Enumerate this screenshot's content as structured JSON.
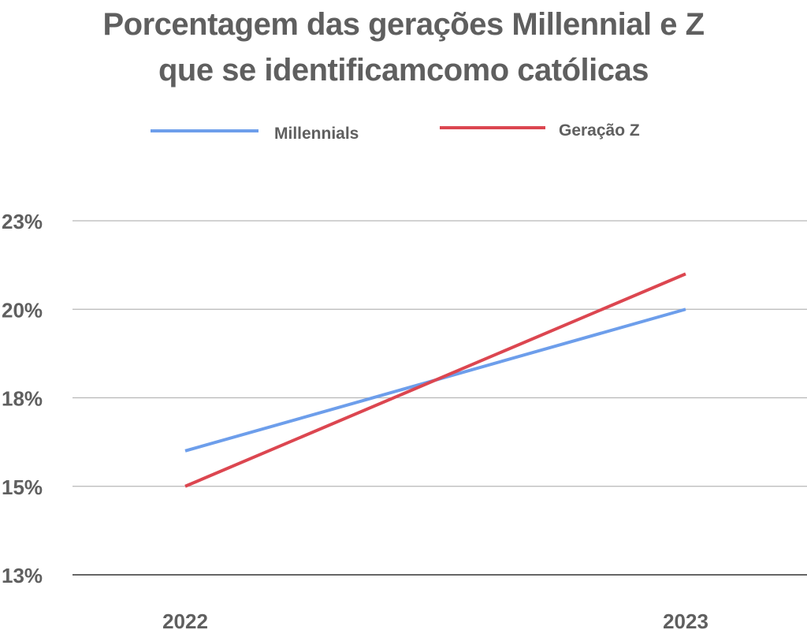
{
  "chart_data": {
    "type": "line",
    "title_lines": [
      "Porcentagem das gerações Millennial e Z",
      "que se identificamcomo católicas"
    ],
    "categories": [
      "2022",
      "2023"
    ],
    "y_tick_labels": [
      "13%",
      "15%",
      "18%",
      "20%",
      "23%"
    ],
    "ylim": [
      12.5,
      22.5
    ],
    "y_ticks": [
      12.5,
      15,
      17.5,
      20,
      22.5
    ],
    "series": [
      {
        "name": "Millennials",
        "values": [
          16.0,
          20.0
        ],
        "color": "#6d9eeb"
      },
      {
        "name": "Geração Z",
        "values": [
          15.0,
          21.0
        ],
        "color": "#dc4650"
      }
    ],
    "legend_position": "top",
    "grid": true,
    "xlabel": "",
    "ylabel": ""
  },
  "colors": {
    "text": "#5f5f5f",
    "grid": "#b7b7b7",
    "baseline": "#333333"
  }
}
